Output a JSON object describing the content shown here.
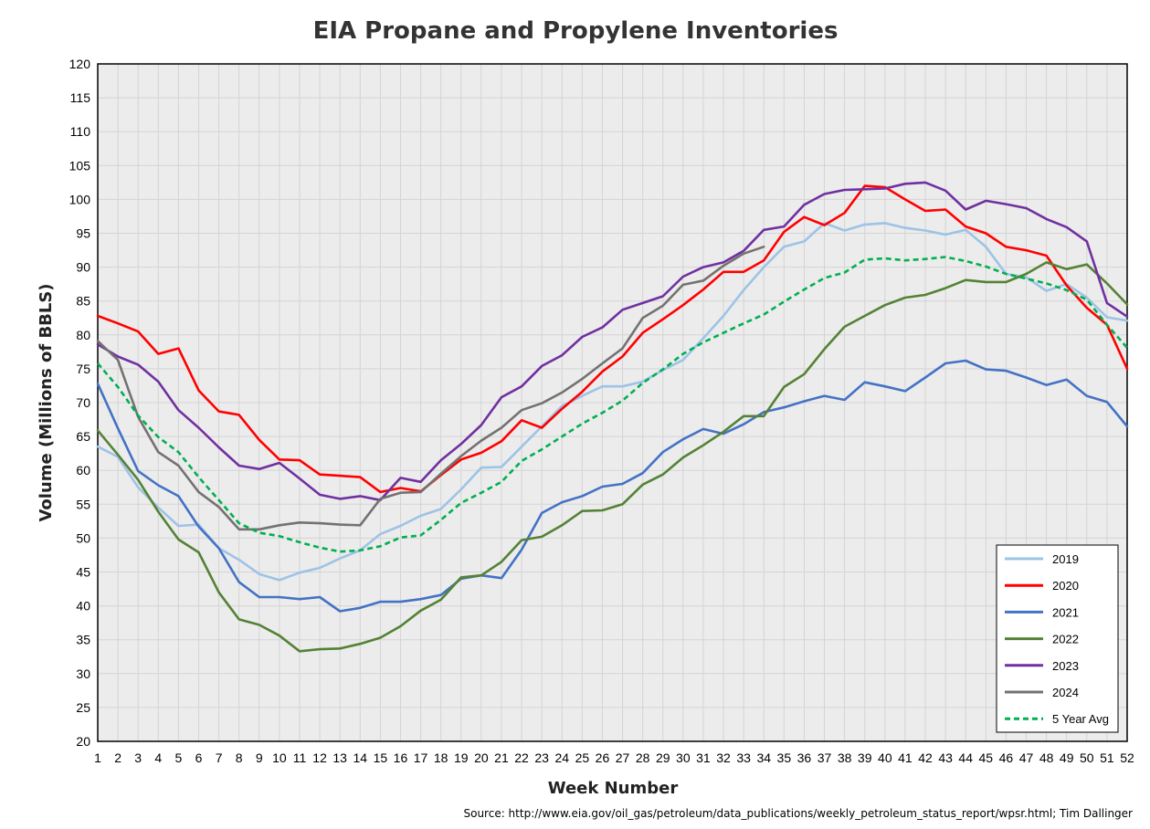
{
  "chart_data": {
    "type": "line",
    "title": "EIA Propane and Propylene Inventories",
    "xlabel": "Week Number",
    "ylabel": "Volume (Millions of BBLS)",
    "source": "Source: http://www.eia.gov/oil_gas/petroleum/data_publications/weekly_petroleum_status_report/wpsr.html; Tim Dallinger",
    "xlim": [
      1,
      52
    ],
    "ylim": [
      20,
      120
    ],
    "ytick_step": 5,
    "grid": true,
    "legend_position": "bottom-right",
    "plot_background": "#ececec",
    "x": [
      1,
      2,
      3,
      4,
      5,
      6,
      7,
      8,
      9,
      10,
      11,
      12,
      13,
      14,
      15,
      16,
      17,
      18,
      19,
      20,
      21,
      22,
      23,
      24,
      25,
      26,
      27,
      28,
      29,
      30,
      31,
      32,
      33,
      34,
      35,
      36,
      37,
      38,
      39,
      40,
      41,
      42,
      43,
      44,
      45,
      46,
      47,
      48,
      49,
      50,
      51,
      52
    ],
    "series": [
      {
        "name": "2019",
        "color": "#9dc3e6",
        "dashed": false,
        "values": [
          63.5,
          62.0,
          57.5,
          54.5,
          51.8,
          52.0,
          48.5,
          46.8,
          44.7,
          43.8,
          44.9,
          45.6,
          47.0,
          48.2,
          50.6,
          51.8,
          53.3,
          54.3,
          57.2,
          60.4,
          60.5,
          63.5,
          66.5,
          69.5,
          71.0,
          72.4,
          72.4,
          73.1,
          74.8,
          76.3,
          79.5,
          82.8,
          86.6,
          90.0,
          93.0,
          93.8,
          96.5,
          95.4,
          96.3,
          96.5,
          95.8,
          95.4,
          94.8,
          95.5,
          93.0,
          89.0,
          88.5,
          86.5,
          87.5,
          85.5,
          82.6,
          82.1
        ]
      },
      {
        "name": "2020",
        "color": "#ff0000",
        "dashed": false,
        "values": [
          82.8,
          81.7,
          80.5,
          77.2,
          78.0,
          71.8,
          68.7,
          68.2,
          64.5,
          61.6,
          61.5,
          59.4,
          59.2,
          59.0,
          56.8,
          57.4,
          56.9,
          59.3,
          61.6,
          62.6,
          64.3,
          67.4,
          66.3,
          69.1,
          71.6,
          74.6,
          76.8,
          80.3,
          82.3,
          84.4,
          86.7,
          89.3,
          89.3,
          91.0,
          95.2,
          97.4,
          96.2,
          98.0,
          102.0,
          101.8,
          100.0,
          98.3,
          98.5,
          96.0,
          95.0,
          93.0,
          92.5,
          91.7,
          87.3,
          84.0,
          81.5,
          75.0
        ]
      },
      {
        "name": "2021",
        "color": "#4472c4",
        "dashed": false,
        "values": [
          72.8,
          66.2,
          59.9,
          57.8,
          56.2,
          51.7,
          48.5,
          43.5,
          41.3,
          41.3,
          41.0,
          41.3,
          39.2,
          39.7,
          40.6,
          40.6,
          41.0,
          41.6,
          44.0,
          44.5,
          44.1,
          48.3,
          53.7,
          55.3,
          56.2,
          57.6,
          58.0,
          59.6,
          62.7,
          64.6,
          66.1,
          65.4,
          66.8,
          68.6,
          69.3,
          70.2,
          71.0,
          70.4,
          73.0,
          72.4,
          71.7,
          73.7,
          75.8,
          76.2,
          74.9,
          74.7,
          73.7,
          72.6,
          73.4,
          71.0,
          70.1,
          66.5
        ]
      },
      {
        "name": "2022",
        "color": "#548235",
        "dashed": false,
        "values": [
          65.9,
          62.3,
          58.6,
          53.9,
          49.8,
          47.9,
          42.0,
          38.0,
          37.2,
          35.6,
          33.3,
          33.6,
          33.7,
          34.4,
          35.3,
          37.0,
          39.3,
          40.9,
          44.2,
          44.5,
          46.5,
          49.7,
          50.2,
          51.9,
          54.0,
          54.1,
          55.0,
          57.9,
          59.4,
          61.9,
          63.7,
          65.7,
          68.0,
          68.0,
          72.3,
          74.2,
          77.9,
          81.2,
          82.8,
          84.4,
          85.5,
          85.9,
          86.9,
          88.1,
          87.8,
          87.8,
          89.0,
          90.7,
          89.7,
          90.4,
          87.6,
          84.5
        ]
      },
      {
        "name": "2023",
        "color": "#7030a0",
        "dashed": false,
        "values": [
          78.6,
          76.8,
          75.6,
          73.1,
          68.9,
          66.3,
          63.4,
          60.7,
          60.2,
          61.1,
          58.8,
          56.4,
          55.8,
          56.2,
          55.6,
          58.9,
          58.3,
          61.5,
          63.9,
          66.7,
          70.8,
          72.4,
          75.4,
          77.0,
          79.7,
          81.1,
          83.7,
          84.7,
          85.7,
          88.6,
          90.0,
          90.7,
          92.4,
          95.5,
          96.0,
          99.2,
          100.8,
          101.4,
          101.5,
          101.6,
          102.3,
          102.5,
          101.3,
          98.5,
          99.8,
          99.3,
          98.7,
          97.1,
          95.9,
          93.8,
          84.7,
          82.7
        ]
      },
      {
        "name": "2024",
        "color": "#767171",
        "dashed": false,
        "values": [
          79.1,
          76.3,
          67.9,
          62.7,
          60.7,
          56.8,
          54.6,
          51.3,
          51.3,
          51.9,
          52.3,
          52.2,
          52.0,
          51.9,
          55.8,
          56.7,
          56.8,
          59.5,
          62.1,
          64.4,
          66.3,
          68.9,
          69.9,
          71.5,
          73.5,
          75.8,
          78.0,
          82.5,
          84.3,
          87.4,
          88.0,
          90.2,
          92.0,
          93.0,
          null,
          null,
          null,
          null,
          null,
          null,
          null,
          null,
          null,
          null,
          null,
          null,
          null,
          null,
          null,
          null,
          null,
          null
        ]
      },
      {
        "name": "5 Year Avg",
        "color": "#00b050",
        "dashed": true,
        "values": [
          75.8,
          72.3,
          68.1,
          64.9,
          62.7,
          59.0,
          55.6,
          52.2,
          50.8,
          50.3,
          49.4,
          48.6,
          48.0,
          48.2,
          48.8,
          50.1,
          50.4,
          52.7,
          55.2,
          56.7,
          58.3,
          61.4,
          63.1,
          65.0,
          66.9,
          68.5,
          70.3,
          72.9,
          74.9,
          77.2,
          78.9,
          80.3,
          81.7,
          83.0,
          84.9,
          86.7,
          88.4,
          89.2,
          91.1,
          91.3,
          91.0,
          91.2,
          91.5,
          90.9,
          90.1,
          89.0,
          88.3,
          87.6,
          86.6,
          85.2,
          81.5,
          78.1
        ]
      }
    ]
  }
}
